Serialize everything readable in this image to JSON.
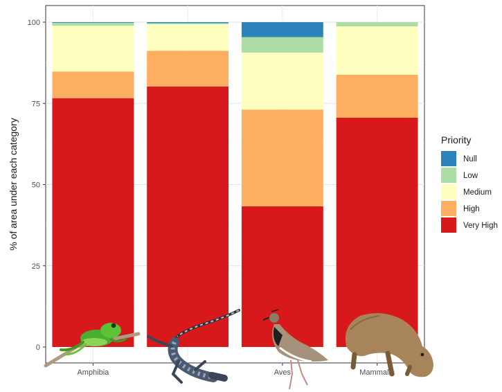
{
  "chart_data": {
    "type": "bar",
    "stacked": true,
    "categories": [
      "Amphibia",
      "",
      "Aves",
      "Mammalia"
    ],
    "ylabel": "% of area under each category",
    "xlabel": "",
    "ylim": [
      0,
      102
    ],
    "yticks": [
      0,
      25,
      50,
      75,
      100
    ],
    "grid": true,
    "legend": {
      "title": "Priority",
      "position": "right"
    },
    "series": [
      {
        "name": "Very High",
        "color": "#d7191c",
        "values": [
          76.6,
          80.2,
          43.3,
          70.6
        ]
      },
      {
        "name": "High",
        "color": "#fdae61",
        "values": [
          8.2,
          11.0,
          29.8,
          13.2
        ]
      },
      {
        "name": "Medium",
        "color": "#ffffbf",
        "values": [
          14.1,
          8.2,
          17.5,
          14.9
        ]
      },
      {
        "name": "Low",
        "color": "#abdda4",
        "values": [
          0.9,
          0.3,
          4.8,
          1.3
        ]
      },
      {
        "name": "Null",
        "color": "#2b83ba",
        "values": [
          0.2,
          0.3,
          4.6,
          0.0
        ]
      }
    ],
    "legend_order": [
      "Null",
      "Low",
      "Medium",
      "High",
      "Very High"
    ],
    "images": [
      "frog-icon",
      "lizard-icon",
      "lapwing-bird-icon",
      "capybara-icon"
    ]
  }
}
